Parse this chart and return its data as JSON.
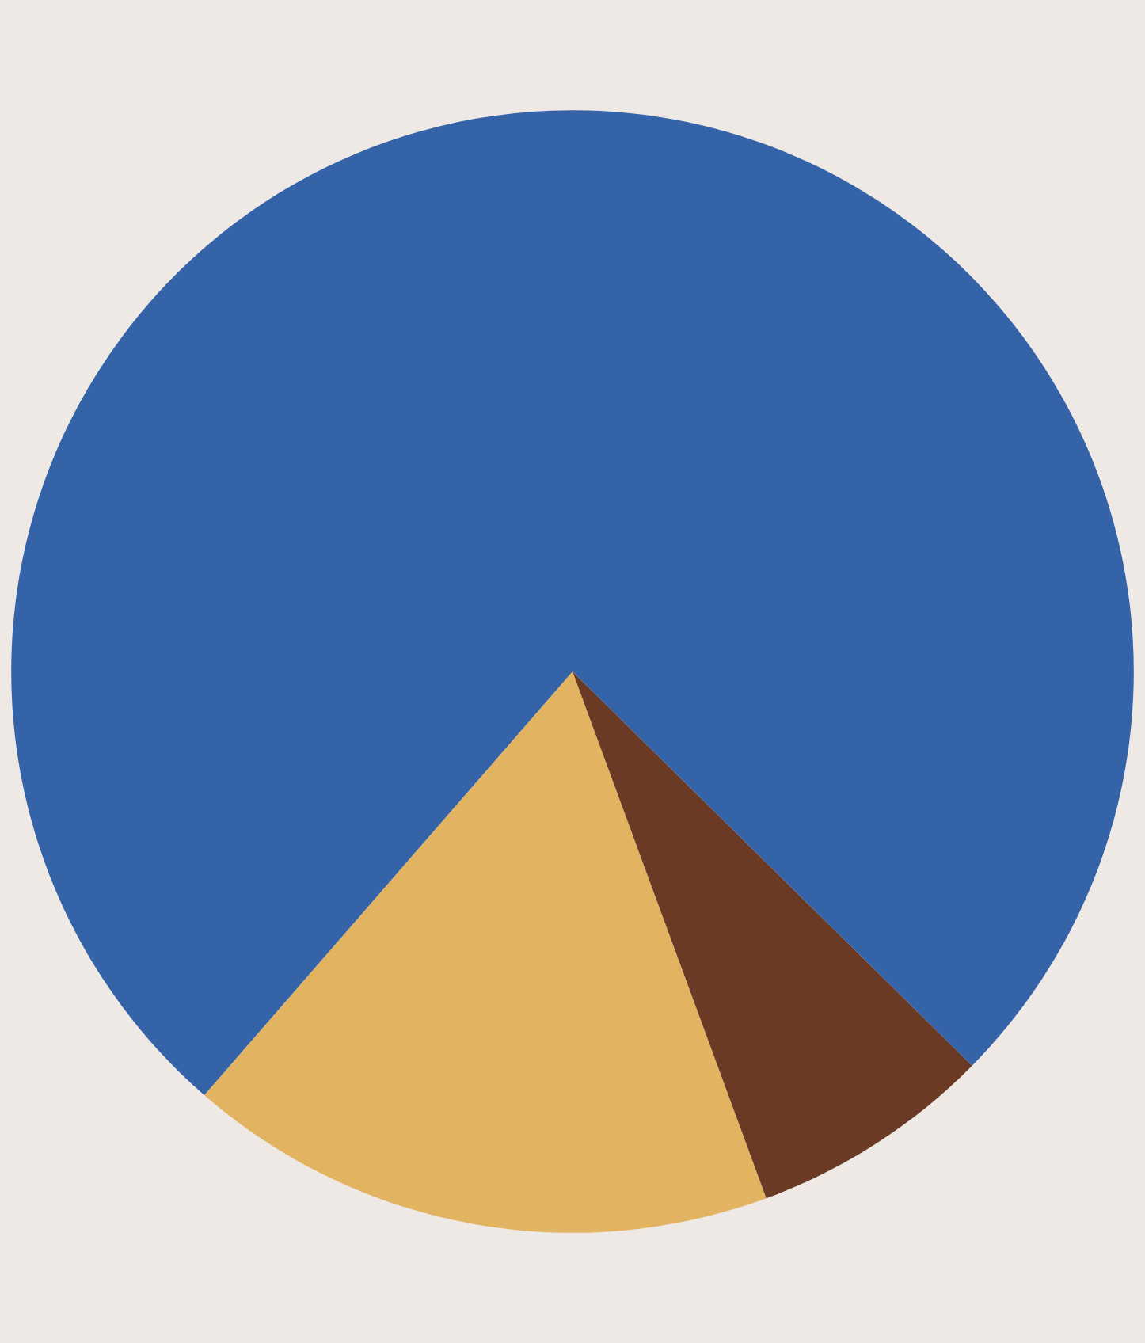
{
  "chart_data": {
    "type": "pie",
    "categories": [
      null,
      null,
      null
    ],
    "values": [
      17,
      7,
      76
    ],
    "colors": [
      "#e2b462",
      "#6b3a24",
      "#3563a8"
    ]
  }
}
